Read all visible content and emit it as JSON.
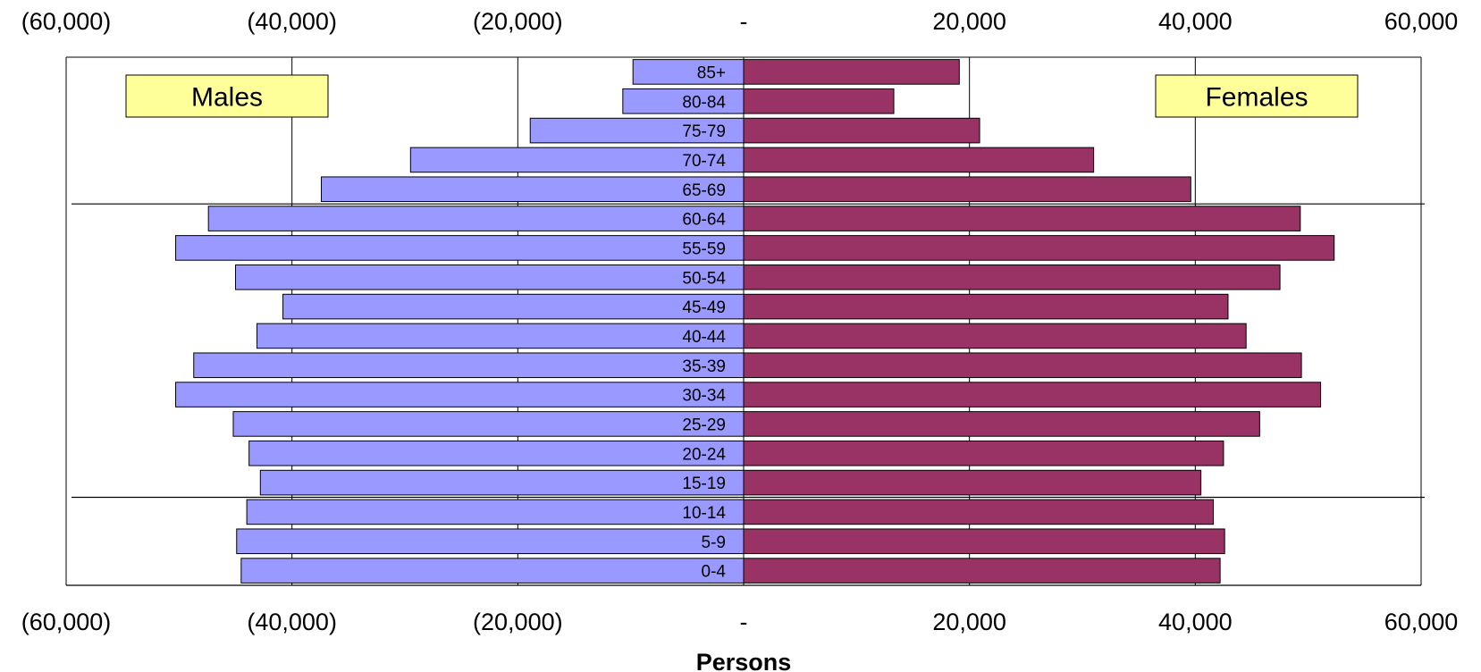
{
  "chart_data": {
    "type": "bar",
    "orientation": "horizontal",
    "layout": "population-pyramid",
    "categories": [
      "0-4",
      "5-9",
      "10-14",
      "15-19",
      "20-24",
      "25-29",
      "30-34",
      "35-39",
      "40-44",
      "45-49",
      "50-54",
      "55-59",
      "60-64",
      "65-69",
      "70-74",
      "75-79",
      "80-84",
      "85+"
    ],
    "series": [
      {
        "name": "Males",
        "color": "#9999ff",
        "values": [
          -44500,
          -44900,
          -44000,
          -42800,
          -43800,
          -45200,
          -50300,
          -48700,
          -43100,
          -40800,
          -45000,
          -50300,
          -47400,
          -37400,
          -29500,
          -18900,
          -10700,
          -9800
        ]
      },
      {
        "name": "Females",
        "color": "#993366",
        "values": [
          42200,
          42600,
          41600,
          40500,
          42500,
          45700,
          51100,
          49400,
          44500,
          42900,
          47500,
          52300,
          49300,
          39600,
          31000,
          20900,
          13300,
          19100
        ]
      }
    ],
    "xlabel": "Persons",
    "ylabel": "",
    "xlim": [
      -60000,
      60000
    ],
    "x_ticks": [
      -60000,
      -40000,
      -20000,
      0,
      20000,
      40000,
      60000
    ],
    "x_tick_labels": [
      "(60,000)",
      "(40,000)",
      "(20,000)",
      "-",
      "20,000",
      "40,000",
      "60,000"
    ],
    "tick_labels_top_and_bottom": true,
    "grid": "vertical",
    "horizontal_reference_lines_below_categories": [
      "65-69",
      "15-19"
    ],
    "legend_boxes": [
      {
        "label": "Males",
        "placement": "top-left",
        "fill": "#ffff99"
      },
      {
        "label": "Females",
        "placement": "top-right",
        "fill": "#ffff99"
      }
    ]
  }
}
